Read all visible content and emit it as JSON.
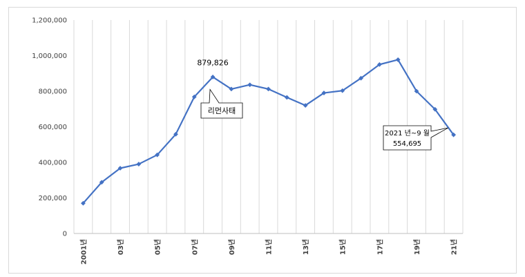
{
  "chart_data": {
    "type": "line",
    "title": "",
    "xlabel": "",
    "ylabel": "",
    "ylim": [
      0,
      1200000
    ],
    "yticks": [
      0,
      200000,
      400000,
      600000,
      800000,
      1000000,
      1200000
    ],
    "ytick_labels": [
      "0",
      "200,000",
      "400,000",
      "600,000",
      "800,000",
      "1,000,000",
      "1,200,000"
    ],
    "grid": "vertical",
    "x": [
      2001,
      2002,
      2003,
      2004,
      2005,
      2006,
      2007,
      2008,
      2009,
      2010,
      2011,
      2012,
      2013,
      2014,
      2015,
      2016,
      2017,
      2018,
      2019,
      2020,
      2021
    ],
    "xtick_labels": [
      "2001년",
      "03년",
      "05년",
      "07년",
      "09년",
      "11년",
      "13년",
      "15년",
      "17년",
      "19년",
      "21년"
    ],
    "xtick_years": [
      2001,
      2003,
      2005,
      2007,
      2009,
      2011,
      2013,
      2015,
      2017,
      2019,
      2021
    ],
    "series": [
      {
        "color": "#4472c4",
        "values": [
          170000,
          288000,
          367000,
          390000,
          442000,
          558000,
          768000,
          879826,
          812000,
          836000,
          812000,
          765000,
          720000,
          790000,
          803000,
          873000,
          950000,
          977000,
          800000,
          698000,
          554695
        ]
      }
    ],
    "annotations": [
      {
        "text": "879,826",
        "year": 2008,
        "value": 879826
      },
      {
        "text": "리먼사태",
        "year": 2008,
        "value": 879826,
        "type": "callout"
      },
      {
        "lines": [
          "2021 년~9 월",
          "554,695"
        ],
        "year": 2021,
        "value": 554695,
        "type": "callout"
      }
    ]
  }
}
